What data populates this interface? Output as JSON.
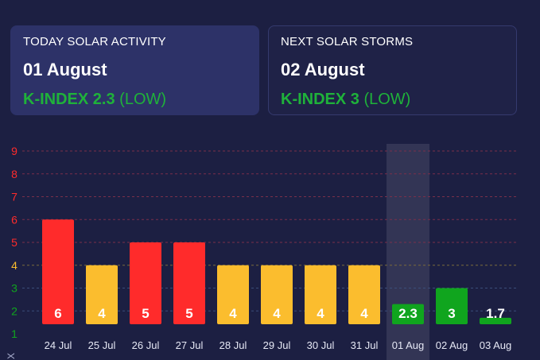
{
  "today": {
    "title": "TODAY SOLAR ACTIVITY",
    "date": "01 August",
    "kindex_label": "K-INDEX 2.3",
    "level": "(LOW)"
  },
  "next": {
    "title": "NEXT SOLAR STORMS",
    "date": "02 August",
    "kindex_label": "K-INDEX 3",
    "level": "(LOW)"
  },
  "colors": {
    "red": "#ff2b2b",
    "yellow": "#fbbd2e",
    "green": "#10a51e",
    "grid_red": "#7a2f4a",
    "grid_yellow": "#7a6a3a",
    "grid_green": "#3a4d7a"
  },
  "chart_data": {
    "type": "bar",
    "categories": [
      "24 Jul",
      "25 Jul",
      "26 Jul",
      "27 Jul",
      "28 Jul",
      "29 Jul",
      "30 Jul",
      "31 Jul",
      "01 Aug",
      "02 Aug",
      "03 Aug"
    ],
    "values": [
      6,
      4,
      5,
      5,
      4,
      4,
      4,
      4,
      2.3,
      3,
      1.7
    ],
    "value_labels": [
      "6",
      "4",
      "5",
      "5",
      "4",
      "4",
      "4",
      "4",
      "2.3",
      "3",
      "1.7"
    ],
    "bar_colors": [
      "red",
      "yellow",
      "red",
      "red",
      "yellow",
      "yellow",
      "yellow",
      "yellow",
      "green",
      "green",
      "green"
    ],
    "highlight_index": 8,
    "y_ticks": [
      "1",
      "2",
      "3",
      "4",
      "5",
      "6",
      "7",
      "8",
      "9"
    ],
    "ylim": [
      1,
      9
    ],
    "ylabel": "X"
  }
}
